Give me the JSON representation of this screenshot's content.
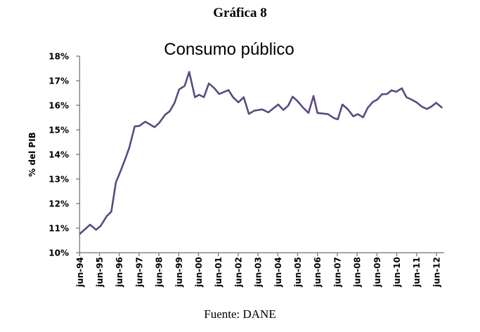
{
  "figure_title": "Gráfica 8",
  "footer": "Fuente: DANE",
  "chart_data": {
    "type": "line",
    "title": "Consumo público",
    "xlabel": "",
    "ylabel": "% del PIB",
    "ylim": [
      10,
      18
    ],
    "yticks": [
      "10%",
      "11%",
      "12%",
      "13%",
      "14%",
      "15%",
      "16%",
      "17%",
      "18%"
    ],
    "xlim": [
      1994.5,
      2012.8
    ],
    "xticks": [
      "jun-94",
      "jun-95",
      "jun-96",
      "jun-97",
      "jun-98",
      "jun-99",
      "jun-00",
      "jun-01",
      "jun-02",
      "jun-03",
      "jun-04",
      "jun-05",
      "jun-06",
      "jun-07",
      "jun-08",
      "jun-09",
      "jun-10",
      "jun-11",
      "jun-12"
    ],
    "grid": false,
    "legend": "none",
    "line_color": "#5b4a80",
    "series": [
      {
        "name": "Consumo público",
        "x": [
          1994.5,
          1995.03,
          1995.33,
          1995.56,
          1995.86,
          1996.1,
          1996.33,
          1996.57,
          1996.86,
          1997.01,
          1997.28,
          1997.51,
          1997.81,
          1998.05,
          1998.28,
          1998.52,
          1998.82,
          1999.05,
          1999.29,
          1999.52,
          1999.8,
          2000.03,
          2000.32,
          2000.53,
          2000.77,
          2001.02,
          2001.3,
          2001.54,
          2002.01,
          2002.24,
          2002.51,
          2002.78,
          2003.04,
          2003.31,
          2003.54,
          2003.72,
          2004.02,
          2004.25,
          2004.52,
          2004.78,
          2005.02,
          2005.25,
          2005.49,
          2005.79,
          2006.05,
          2006.3,
          2006.5,
          2007.03,
          2007.33,
          2007.53,
          2007.76,
          2008.04,
          2008.31,
          2008.54,
          2008.8,
          2009.04,
          2009.3,
          2009.53,
          2009.75,
          2010.01,
          2010.24,
          2010.48,
          2010.76,
          2010.99,
          2011.23,
          2011.5,
          2011.76,
          2012.02,
          2012.25,
          2012.49,
          2012.8
        ],
        "y": [
          10.76,
          11.14,
          10.93,
          11.09,
          11.48,
          11.67,
          12.86,
          13.33,
          13.95,
          14.29,
          15.14,
          15.16,
          15.33,
          15.22,
          15.11,
          15.29,
          15.62,
          15.76,
          16.1,
          16.65,
          16.79,
          17.36,
          16.33,
          16.43,
          16.33,
          16.89,
          16.69,
          16.46,
          16.62,
          16.33,
          16.12,
          16.33,
          15.65,
          15.78,
          15.81,
          15.83,
          15.71,
          15.86,
          16.03,
          15.81,
          15.98,
          16.35,
          16.17,
          15.89,
          15.69,
          16.38,
          15.69,
          15.64,
          15.48,
          15.43,
          16.03,
          15.83,
          15.55,
          15.64,
          15.51,
          15.9,
          16.14,
          16.24,
          16.45,
          16.46,
          16.61,
          16.55,
          16.69,
          16.33,
          16.24,
          16.12,
          15.95,
          15.85,
          15.95,
          16.1,
          15.89
        ]
      }
    ]
  }
}
